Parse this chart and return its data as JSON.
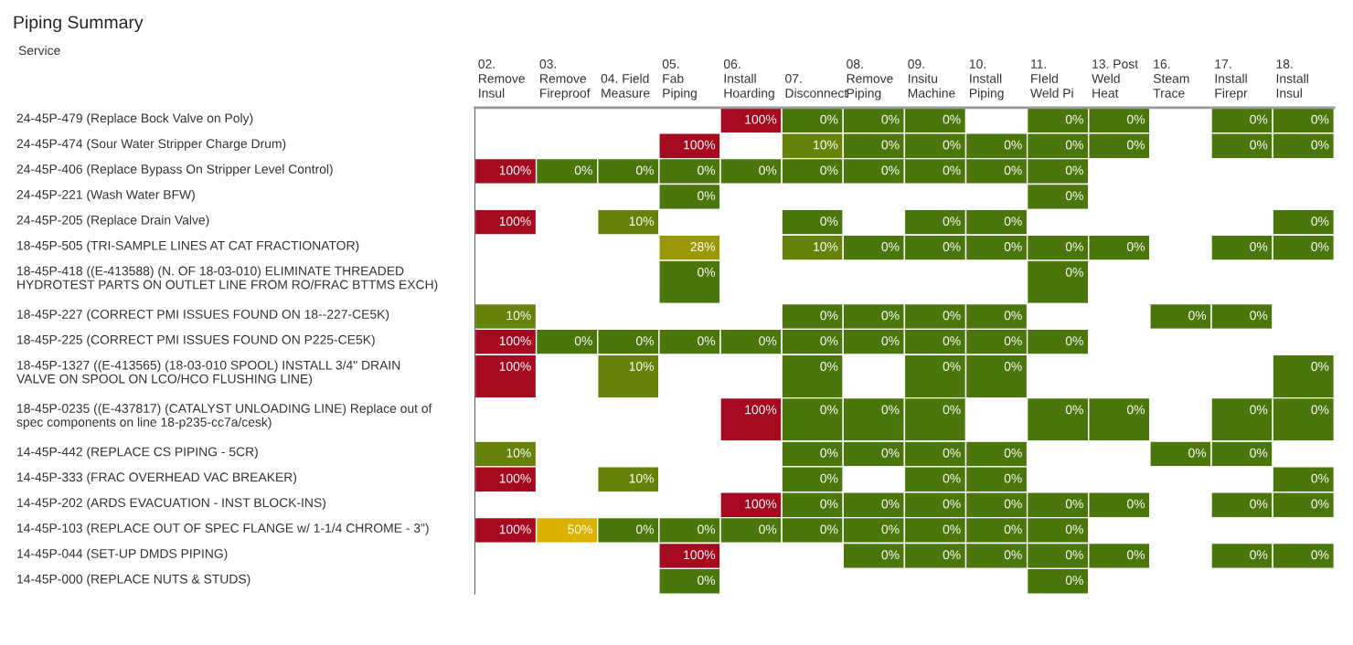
{
  "chart_data": {
    "type": "heatmap",
    "title": "Piping Summary",
    "ylabel": "Service",
    "categories": [
      "02.\nRemove\nInsul",
      "03.\nRemove\nFireproof",
      "04. Field\nMeasure",
      "05.\nFab\nPiping",
      "06.\nInstall\nHoarding",
      "07.\nDisconnect",
      "08.\nRemove\nPiping",
      "09.\nInsitu\nMachine",
      "10.\nInstall\nPiping",
      "11.\nFIeld\nWeld Pi",
      "13. Post\nWeld\nHeat",
      "16.\nSteam\nTrace",
      "17.\nInstall\nFirepr",
      "18.\nInstall\nInsul"
    ],
    "y_categories": [
      "24-45P-479 (Replace Bock Valve on Poly)",
      "24-45P-474 (Sour Water Stripper Charge Drum)",
      "24-45P-406 (Replace Bypass On Stripper Level Control)",
      "24-45P-221 (Wash Water BFW)",
      "24-45P-205 (Replace Drain Valve)",
      "18-45P-505 (TRI-SAMPLE LINES AT CAT FRACTIONATOR)",
      "18-45P-418 ((E-413588) (N. OF 18-03-010) ELIMINATE THREADED\nHYDROTEST PARTS ON OUTLET LINE FROM RO/FRAC BTTMS EXCH)",
      "18-45P-227 (CORRECT PMI ISSUES FOUND ON 18--227-CE5K)",
      "18-45P-225 (CORRECT PMI ISSUES FOUND ON P225-CE5K)",
      "18-45P-1327 ((E-413565) (18-03-010 SPOOL) INSTALL 3/4\" DRAIN\nVALVE ON SPOOL ON LCO/HCO FLUSHING LINE)",
      "18-45P-0235 ((E-437817) (CATALYST UNLOADING LINE) Replace out of\nspec components on line 18-p235-cc7a/cesk)",
      "14-45P-442 (REPLACE CS PIPING - 5CR)",
      "14-45P-333 (FRAC OVERHEAD VAC BREAKER)",
      "14-45P-202 (ARDS EVACUATION - INST BLOCK-INS)",
      "14-45P-103 (REPLACE OUT OF SPEC FLANGE w/ 1-1/4 CHROME - 3\")",
      "14-45P-044 (SET-UP DMDS PIPING)",
      "14-45P-000 (REPLACE NUTS & STUDS)"
    ],
    "cells": [
      [
        null,
        null,
        null,
        null,
        100,
        0,
        0,
        0,
        null,
        0,
        0,
        null,
        0,
        0
      ],
      [
        null,
        null,
        null,
        100,
        null,
        10,
        0,
        0,
        0,
        0,
        0,
        null,
        0,
        0
      ],
      [
        100,
        0,
        0,
        0,
        0,
        0,
        0,
        0,
        0,
        0,
        null,
        null,
        null,
        null
      ],
      [
        null,
        null,
        null,
        0,
        null,
        null,
        null,
        null,
        null,
        0,
        null,
        null,
        null,
        null
      ],
      [
        100,
        null,
        10,
        null,
        null,
        0,
        null,
        0,
        0,
        null,
        null,
        null,
        null,
        0
      ],
      [
        null,
        null,
        null,
        28,
        null,
        10,
        0,
        0,
        0,
        0,
        0,
        null,
        0,
        0
      ],
      [
        null,
        null,
        null,
        0,
        null,
        null,
        null,
        null,
        null,
        0,
        null,
        null,
        null,
        null
      ],
      [
        10,
        null,
        null,
        null,
        null,
        0,
        0,
        0,
        0,
        null,
        null,
        0,
        0,
        null
      ],
      [
        100,
        0,
        0,
        0,
        0,
        0,
        0,
        0,
        0,
        0,
        null,
        null,
        null,
        null
      ],
      [
        100,
        null,
        10,
        null,
        null,
        0,
        null,
        0,
        0,
        null,
        null,
        null,
        null,
        0
      ],
      [
        null,
        null,
        null,
        null,
        100,
        0,
        0,
        0,
        null,
        0,
        0,
        null,
        0,
        0
      ],
      [
        10,
        null,
        null,
        null,
        null,
        0,
        0,
        0,
        0,
        null,
        null,
        0,
        0,
        null
      ],
      [
        100,
        null,
        10,
        null,
        null,
        0,
        null,
        0,
        0,
        null,
        null,
        null,
        null,
        0
      ],
      [
        null,
        null,
        null,
        null,
        100,
        0,
        0,
        0,
        0,
        0,
        0,
        null,
        0,
        0
      ],
      [
        100,
        50,
        0,
        0,
        0,
        0,
        0,
        0,
        0,
        0,
        null,
        null,
        null,
        null
      ],
      [
        null,
        null,
        null,
        100,
        null,
        null,
        0,
        0,
        0,
        0,
        0,
        null,
        0,
        0
      ],
      [
        null,
        null,
        null,
        0,
        null,
        null,
        null,
        null,
        null,
        0,
        null,
        null,
        null,
        null
      ]
    ],
    "cell_labels": [
      [
        null,
        null,
        null,
        null,
        "100%",
        "0%",
        "0%",
        "0%",
        null,
        "0%",
        "0%",
        null,
        "0%",
        "0%"
      ],
      [
        null,
        null,
        null,
        "100%",
        null,
        "10%",
        "0%",
        "0%",
        "0%",
        "0%",
        "0%",
        null,
        "0%",
        "0%"
      ],
      [
        "100%",
        "0%",
        "0%",
        "0%",
        "0%",
        "0%",
        "0%",
        "0%",
        "0%",
        "0%",
        null,
        null,
        null,
        null
      ],
      [
        null,
        null,
        null,
        "0%",
        null,
        null,
        null,
        null,
        null,
        "0%",
        null,
        null,
        null,
        null
      ],
      [
        "100%",
        null,
        "10%",
        null,
        null,
        "0%",
        null,
        "0%",
        "0%",
        null,
        null,
        null,
        null,
        "0%"
      ],
      [
        null,
        null,
        null,
        "28%",
        null,
        "10%",
        "0%",
        "0%",
        "0%",
        "0%",
        "0%",
        null,
        "0%",
        "0%"
      ],
      [
        null,
        null,
        null,
        "0%",
        null,
        null,
        null,
        null,
        null,
        "0%",
        null,
        null,
        null,
        null
      ],
      [
        "10%",
        null,
        null,
        null,
        null,
        "0%",
        "0%",
        "0%",
        "0%",
        null,
        null,
        "0%",
        "0%",
        null
      ],
      [
        "100%",
        "0%",
        "0%",
        "0%",
        "0%",
        "0%",
        "0%",
        "0%",
        "0%",
        "0%",
        null,
        null,
        null,
        null
      ],
      [
        "100%",
        null,
        "10%",
        null,
        null,
        "0%",
        null,
        "0%",
        "0%",
        null,
        null,
        null,
        null,
        "0%"
      ],
      [
        null,
        null,
        null,
        null,
        "100%",
        "0%",
        "0%",
        "0%",
        null,
        "0%",
        "0%",
        null,
        "0%",
        "0%"
      ],
      [
        "10%",
        null,
        null,
        null,
        null,
        "0%",
        "0%",
        "0%",
        "0%",
        null,
        null,
        "0%",
        "0%",
        null
      ],
      [
        "100%",
        null,
        "10%",
        null,
        null,
        "0%",
        null,
        "0%",
        "0%",
        null,
        null,
        null,
        null,
        "0%"
      ],
      [
        null,
        null,
        null,
        null,
        "100%",
        "0%",
        "0%",
        "0%",
        "0%",
        "0%",
        "0%",
        null,
        "0%",
        "0%"
      ],
      [
        "100%",
        "50%",
        "0%",
        "0%",
        "0%",
        "0%",
        "0%",
        "0%",
        "0%",
        "0%",
        null,
        null,
        null,
        null
      ],
      [
        null,
        null,
        null,
        "100%",
        null,
        null,
        "0%",
        "0%",
        "0%",
        "0%",
        "0%",
        null,
        "0%",
        "0%"
      ],
      [
        null,
        null,
        null,
        "0%",
        null,
        null,
        null,
        null,
        null,
        "0%",
        null,
        null,
        null,
        null
      ]
    ],
    "colors": [
      "#4b760c",
      "#dbb300",
      "#a50a20"
    ]
  }
}
